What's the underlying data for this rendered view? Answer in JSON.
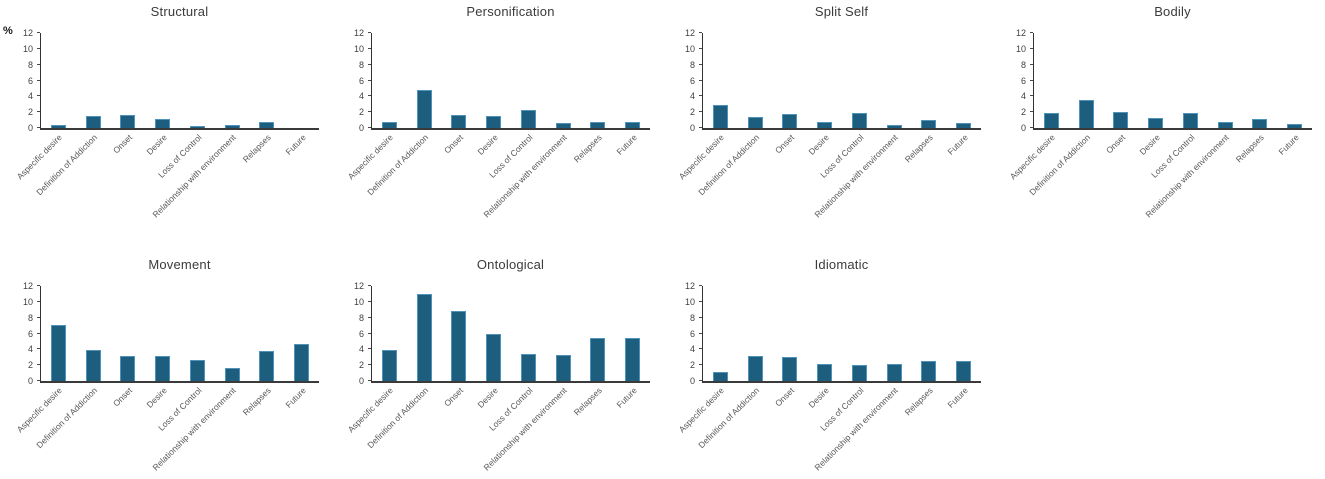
{
  "colors": {
    "bar_fill": "#1d5e7f",
    "bar_border": "#4f93ba",
    "axis": "#3a3a3a",
    "tick_text": "#404040",
    "category_text": "#595959",
    "title_text": "#3b3b3b"
  },
  "chart_data": [
    {
      "type": "bar",
      "title": "Structural",
      "ylabel": "%",
      "categories": [
        "Aspecific desire",
        "Definition of Addiction",
        "Onset",
        "Desire",
        "Loss of Control",
        "Relationship with environment",
        "Relapses",
        "Future"
      ],
      "values": [
        0.4,
        1.5,
        1.7,
        1.2,
        0.3,
        0.4,
        0.8,
        0
      ],
      "ylim": [
        0,
        12
      ],
      "yticks": [
        0,
        2,
        4,
        6,
        8,
        10,
        12
      ],
      "grid": false,
      "legend": "none"
    },
    {
      "type": "bar",
      "title": "Personification",
      "categories": [
        "Aspecific desire",
        "Definition of Addiction",
        "Onset",
        "Desire",
        "Loss of Control",
        "Relationship with environment",
        "Relapses",
        "Future"
      ],
      "values": [
        0.8,
        4.8,
        1.7,
        1.5,
        2.3,
        0.6,
        0.7,
        0.7
      ],
      "ylim": [
        0,
        12
      ],
      "yticks": [
        0,
        2,
        4,
        6,
        8,
        10,
        12
      ],
      "grid": false,
      "legend": "none"
    },
    {
      "type": "bar",
      "title": "Split Self",
      "categories": [
        "Aspecific desire",
        "Definition of Addiction",
        "Onset",
        "Desire",
        "Loss of Control",
        "Relationship with environment",
        "Relapses",
        "Future"
      ],
      "values": [
        2.9,
        1.4,
        1.8,
        0.7,
        1.9,
        0.4,
        1.0,
        0.6
      ],
      "ylim": [
        0,
        12
      ],
      "yticks": [
        0,
        2,
        4,
        6,
        8,
        10,
        12
      ],
      "grid": false,
      "legend": "none"
    },
    {
      "type": "bar",
      "title": "Bodily",
      "categories": [
        "Aspecific desire",
        "Definition of Addiction",
        "Onset",
        "Desire",
        "Loss of Control",
        "Relationship with environment",
        "Relapses",
        "Future"
      ],
      "values": [
        1.9,
        3.5,
        2.0,
        1.3,
        1.9,
        0.8,
        1.2,
        0.5
      ],
      "ylim": [
        0,
        12
      ],
      "yticks": [
        0,
        2,
        4,
        6,
        8,
        10,
        12
      ],
      "grid": false,
      "legend": "none"
    },
    {
      "type": "bar",
      "title": "Movement",
      "categories": [
        "Aspecific desire",
        "Definition of Addiction",
        "Onset",
        "Desire",
        "Loss of Control",
        "Relationship with environment",
        "Relapses",
        "Future"
      ],
      "values": [
        7.1,
        3.9,
        3.1,
        3.2,
        2.6,
        1.7,
        3.8,
        4.7
      ],
      "ylim": [
        0,
        12
      ],
      "yticks": [
        0,
        2,
        4,
        6,
        8,
        10,
        12
      ],
      "grid": false,
      "legend": "none"
    },
    {
      "type": "bar",
      "title": "Ontological",
      "categories": [
        "Aspecific desire",
        "Definition of Addiction",
        "Onset",
        "Desire",
        "Loss of Control",
        "Relationship with environment",
        "Relapses",
        "Future"
      ],
      "values": [
        3.9,
        11.0,
        8.9,
        6.0,
        3.4,
        3.3,
        5.4,
        5.4
      ],
      "ylim": [
        0,
        12
      ],
      "yticks": [
        0,
        2,
        4,
        6,
        8,
        10,
        12
      ],
      "grid": false,
      "legend": "none"
    },
    {
      "type": "bar",
      "title": "Idiomatic",
      "categories": [
        "Aspecific desire",
        "Definition of Addiction",
        "Onset",
        "Desire",
        "Loss of Control",
        "Relationship with environment",
        "Relapses",
        "Future"
      ],
      "values": [
        1.2,
        3.1,
        3.0,
        2.2,
        2.0,
        2.1,
        2.5,
        2.5
      ],
      "ylim": [
        0,
        12
      ],
      "yticks": [
        0,
        2,
        4,
        6,
        8,
        10,
        12
      ],
      "grid": false,
      "legend": "none"
    }
  ]
}
